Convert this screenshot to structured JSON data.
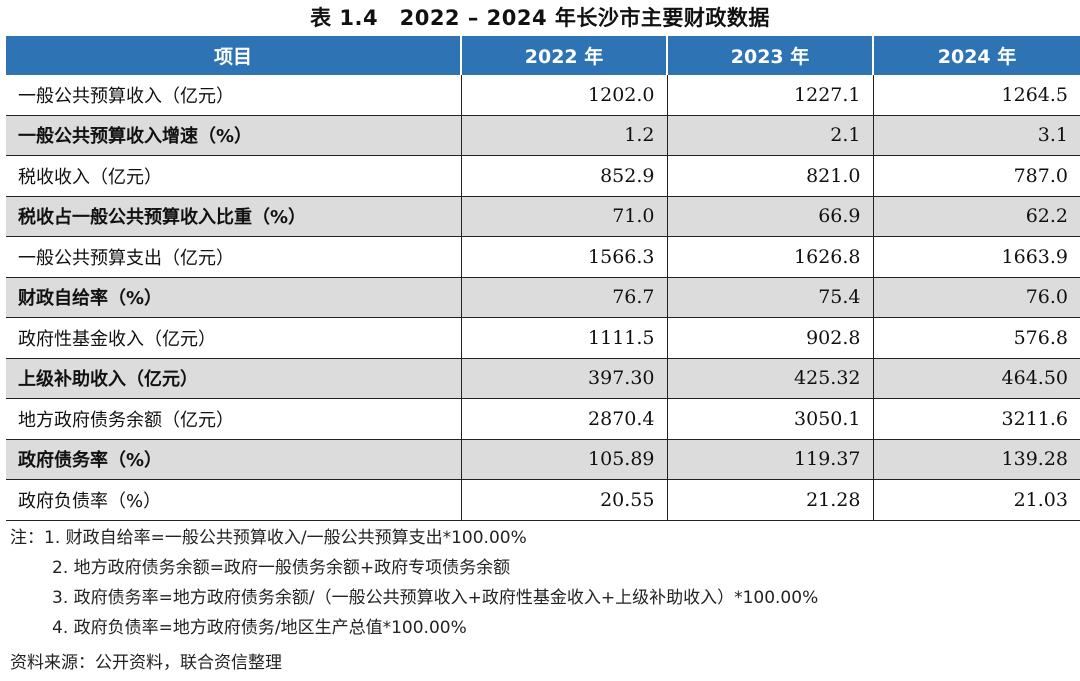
{
  "title": "表 1.4　2022 – 2024 年长沙市主要财政数据",
  "table": {
    "headers": [
      "项目",
      "2022 年",
      "2023 年",
      "2024 年"
    ],
    "rows": [
      {
        "label": "一般公共预算收入（亿元）",
        "values": [
          "1202.0",
          "1227.1",
          "1264.5"
        ]
      },
      {
        "label": "一般公共预算收入增速（%）",
        "values": [
          "1.2",
          "2.1",
          "3.1"
        ]
      },
      {
        "label": "税收收入（亿元）",
        "values": [
          "852.9",
          "821.0",
          "787.0"
        ]
      },
      {
        "label": "税收占一般公共预算收入比重（%）",
        "values": [
          "71.0",
          "66.9",
          "62.2"
        ]
      },
      {
        "label": "一般公共预算支出（亿元）",
        "values": [
          "1566.3",
          "1626.8",
          "1663.9"
        ]
      },
      {
        "label": "财政自给率（%）",
        "values": [
          "76.7",
          "75.4",
          "76.0"
        ]
      },
      {
        "label": "政府性基金收入（亿元）",
        "values": [
          "1111.5",
          "902.8",
          "576.8"
        ]
      },
      {
        "label": "上级补助收入（亿元）",
        "values": [
          "397.30",
          "425.32",
          "464.50"
        ]
      },
      {
        "label": "地方政府债务余额（亿元）",
        "values": [
          "2870.4",
          "3050.1",
          "3211.6"
        ]
      },
      {
        "label": "政府债务率（%）",
        "values": [
          "105.89",
          "119.37",
          "139.28"
        ]
      },
      {
        "label": "政府负债率（%）",
        "values": [
          "20.55",
          "21.28",
          "21.03"
        ]
      }
    ]
  },
  "notes": [
    "注：1. 财政自给率=一般公共预算收入/一般公共预算支出*100.00%",
    "2. 地方政府债务余额=政府一般债务余额+政府专项债务余额",
    "3. 政府债务率=地方政府债务余额/（一般公共预算收入+政府性基金收入+上级补助收入）*100.00%",
    "4. 政府负债率=地方政府债务/地区生产总值*100.00%"
  ],
  "source": "资料来源：公开资料，联合资信整理",
  "colors": {
    "header_bg": "#2e74b5",
    "shade_bg": "#dcdcdc"
  }
}
